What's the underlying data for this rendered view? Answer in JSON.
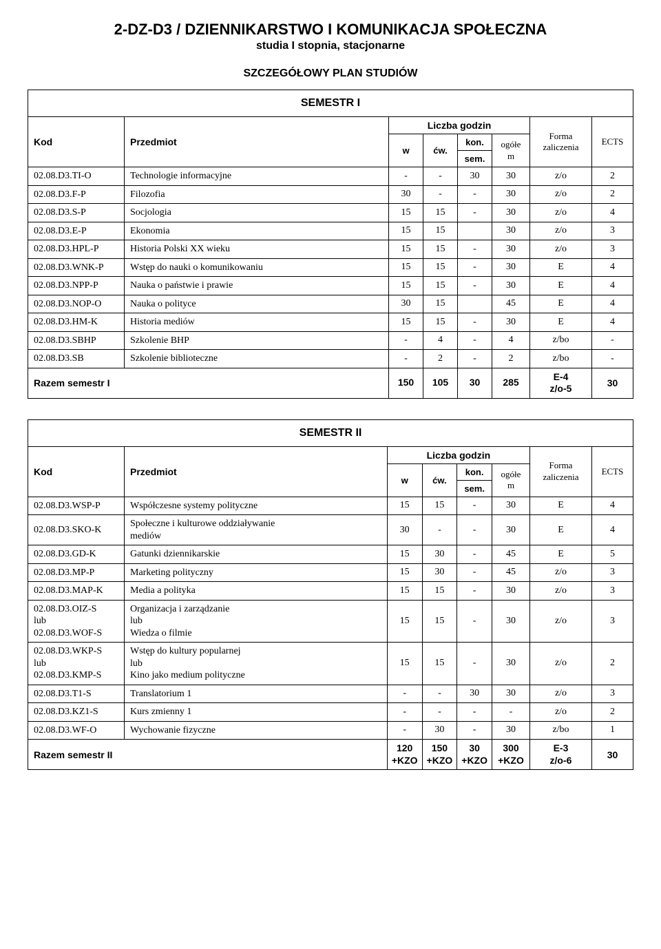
{
  "header": {
    "title": "2-DZ-D3 / DZIENNIKARSTWO I KOMUNIKACJA SPOŁECZNA",
    "subtitle": "studia I stopnia, stacjonarne",
    "plan_title": "SZCZEGÓŁOWY PLAN STUDIÓW"
  },
  "labels": {
    "kod": "Kod",
    "przedmiot": "Przedmiot",
    "liczba_godzin": "Liczba godzin",
    "w": "w",
    "cw": "ćw.",
    "kon": "kon.",
    "sem": "sem.",
    "ogolem": "ogółe\nm",
    "forma": "Forma\nzaliczenia",
    "ects": "ECTS"
  },
  "sem1": {
    "title": "SEMESTR I",
    "rows": [
      {
        "kod": "02.08.D3.TI-O",
        "name": "Technologie informacyjne",
        "w": "-",
        "cw": "-",
        "kon": "30",
        "og": "30",
        "forma": "z/o",
        "ects": "2"
      },
      {
        "kod": "02.08.D3.F-P",
        "name": "Filozofia",
        "w": "30",
        "cw": "-",
        "kon": "-",
        "og": "30",
        "forma": "z/o",
        "ects": "2"
      },
      {
        "kod": "02.08.D3.S-P",
        "name": "Socjologia",
        "w": "15",
        "cw": "15",
        "kon": "-",
        "og": "30",
        "forma": "z/o",
        "ects": "4"
      },
      {
        "kod": "02.08.D3.E-P",
        "name": "Ekonomia",
        "w": "15",
        "cw": "15",
        "kon": "",
        "og": "30",
        "forma": "z/o",
        "ects": "3"
      },
      {
        "kod": "02.08.D3.HPL-P",
        "name": "Historia Polski XX wieku",
        "w": "15",
        "cw": "15",
        "kon": "-",
        "og": "30",
        "forma": "z/o",
        "ects": "3"
      },
      {
        "kod": "02.08.D3.WNK-P",
        "name": "Wstęp do nauki o komunikowaniu",
        "w": "15",
        "cw": "15",
        "kon": "-",
        "og": "30",
        "forma": "E",
        "ects": "4"
      },
      {
        "kod": "02.08.D3.NPP-P",
        "name": "Nauka o państwie i prawie",
        "w": "15",
        "cw": "15",
        "kon": "-",
        "og": "30",
        "forma": "E",
        "ects": "4"
      },
      {
        "kod": "02.08.D3.NOP-O",
        "name": "Nauka o polityce",
        "w": "30",
        "cw": "15",
        "kon": "",
        "og": "45",
        "forma": "E",
        "ects": "4"
      },
      {
        "kod": "02.08.D3.HM-K",
        "name": "Historia mediów",
        "w": "15",
        "cw": "15",
        "kon": "-",
        "og": "30",
        "forma": "E",
        "ects": "4"
      },
      {
        "kod": "02.08.D3.SBHP",
        "name": "Szkolenie BHP",
        "w": "-",
        "cw": "4",
        "kon": "-",
        "og": "4",
        "forma": "z/bo",
        "ects": "-"
      },
      {
        "kod": "02.08.D3.SB",
        "name": "Szkolenie biblioteczne",
        "w": "-",
        "cw": "2",
        "kon": "-",
        "og": "2",
        "forma": "z/bo",
        "ects": "-"
      }
    ],
    "sum": {
      "label": "Razem semestr I",
      "w": "150",
      "cw": "105",
      "kon": "30",
      "og": "285",
      "forma": "E-4\nz/o-5",
      "ects": "30"
    }
  },
  "sem2": {
    "title": "SEMESTR II",
    "rows": [
      {
        "kod": "02.08.D3.WSP-P",
        "name": "Współczesne systemy polityczne",
        "w": "15",
        "cw": "15",
        "kon": "-",
        "og": "30",
        "forma": "E",
        "ects": "4"
      },
      {
        "kod": "02.08.D3.SKO-K",
        "name": "Społeczne i kulturowe oddziaływanie\nmediów",
        "w": "30",
        "cw": "-",
        "kon": "-",
        "og": "30",
        "forma": "E",
        "ects": "4"
      },
      {
        "kod": "02.08.D3.GD-K",
        "name": "Gatunki dziennikarskie",
        "w": "15",
        "cw": "30",
        "kon": "-",
        "og": "45",
        "forma": "E",
        "ects": "5"
      },
      {
        "kod": "02.08.D3.MP-P",
        "name": "Marketing polityczny",
        "w": "15",
        "cw": "30",
        "kon": "-",
        "og": "45",
        "forma": "z/o",
        "ects": "3"
      },
      {
        "kod": "02.08.D3.MAP-K",
        "name": "Media a polityka",
        "w": "15",
        "cw": "15",
        "kon": "-",
        "og": "30",
        "forma": "z/o",
        "ects": "3"
      },
      {
        "kod": "02.08.D3.OIZ-S\nlub\n02.08.D3.WOF-S",
        "name": "Organizacja i zarządzanie\nlub\nWiedza o filmie",
        "w": "15",
        "cw": "15",
        "kon": "-",
        "og": "30",
        "forma": "z/o",
        "ects": "3"
      },
      {
        "kod": "02.08.D3.WKP-S\nlub\n02.08.D3.KMP-S",
        "name": "Wstęp do kultury popularnej\nlub\nKino jako medium polityczne",
        "w": "15",
        "cw": "15",
        "kon": "-",
        "og": "30",
        "forma": "z/o",
        "ects": "2"
      },
      {
        "kod": "02.08.D3.T1-S",
        "name": "Translatorium 1",
        "w": "-",
        "cw": "-",
        "kon": "30",
        "og": "30",
        "forma": "z/o",
        "ects": "3"
      },
      {
        "kod": "02.08.D3.KZ1-S",
        "name": "Kurs zmienny 1",
        "w": "-",
        "cw": "-",
        "kon": "-",
        "og": "-",
        "forma": "z/o",
        "ects": "2"
      },
      {
        "kod": "02.08.D3.WF-O",
        "name": "Wychowanie fizyczne",
        "w": "-",
        "cw": "30",
        "kon": "-",
        "og": "30",
        "forma": "z/bo",
        "ects": "1"
      }
    ],
    "sum": {
      "label": "Razem semestr II",
      "w": "120\n+KZO",
      "cw": "150\n+KZO",
      "kon": "30\n+KZO",
      "og": "300\n+KZO",
      "forma": "E-3\nz/o-6",
      "ects": "30"
    }
  }
}
